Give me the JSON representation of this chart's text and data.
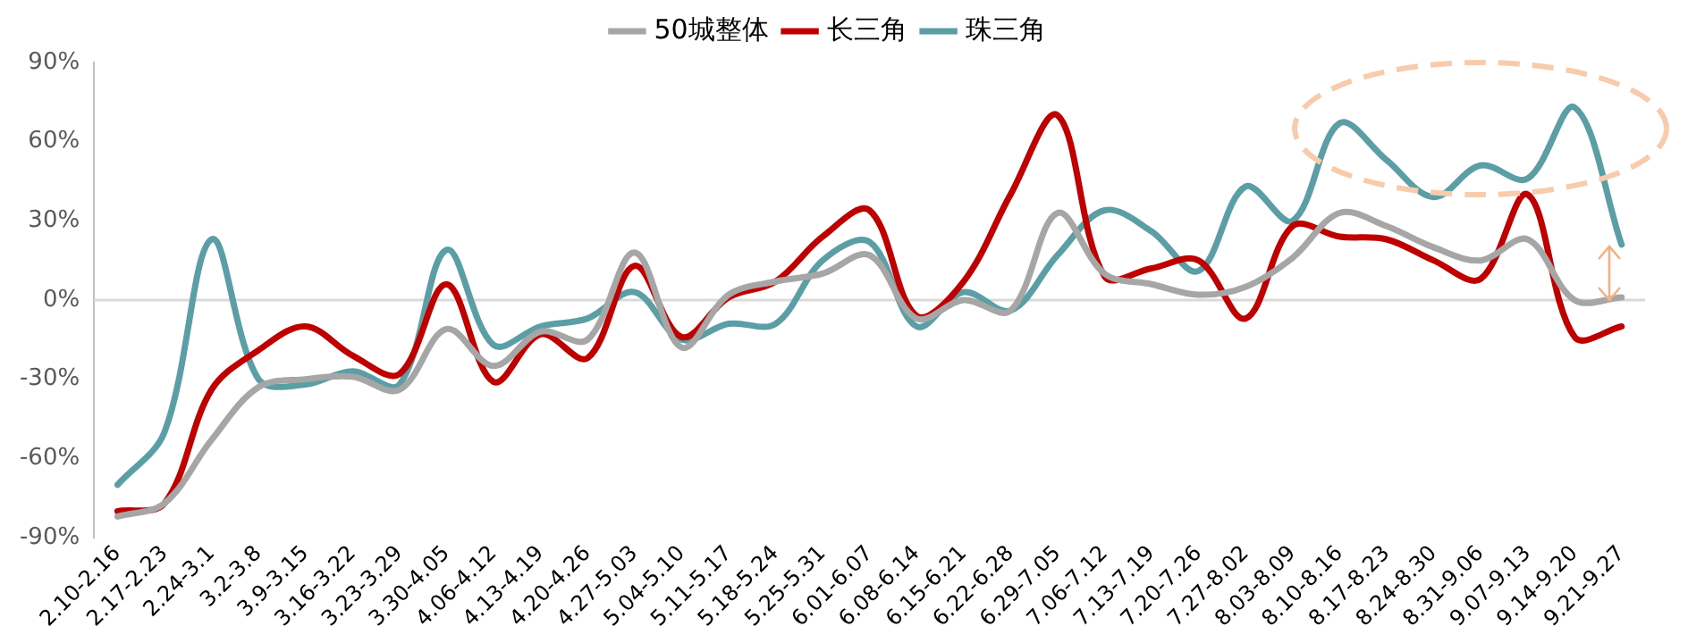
{
  "chart_data": {
    "type": "line",
    "categories": [
      "2.10-2.16",
      "2.17-2.23",
      "2.24-3.1",
      "3.2-3.8",
      "3.9-3.15",
      "3.16-3.22",
      "3.23-3.29",
      "3.30-4.05",
      "4.06-4.12",
      "4.13-4.19",
      "4.20-4.26",
      "4.27-5.03",
      "5.04-5.10",
      "5.11-5.17",
      "5.18-5.24",
      "5.25-5.31",
      "6.01-6.07",
      "6.08-6.14",
      "6.15-6.21",
      "6.22-6.28",
      "6.29-7.05",
      "7.06-7.12",
      "7.13-7.19",
      "7.20-7.26",
      "7.27-8.02",
      "8.03-8.09",
      "8.10-8.16",
      "8.17-8.23",
      "8.24-8.30",
      "8.31-9.06",
      "9.07-9.13",
      "9.14-9.20",
      "9.21-9.27"
    ],
    "series": [
      {
        "name": "50城整体",
        "color": "#a6a6a6",
        "values": [
          -82,
          -77,
          -53,
          -33,
          -30,
          -29,
          -34,
          -11,
          -25,
          -12,
          -15,
          18,
          -18,
          2,
          7,
          10,
          17,
          -7,
          0,
          -4,
          33,
          10,
          6,
          2,
          5,
          16,
          33,
          28,
          20,
          15,
          23,
          0,
          1
        ]
      },
      {
        "name": "长三角",
        "color": "#c00000",
        "values": [
          -80,
          -77,
          -34,
          -19,
          -10,
          -21,
          -28,
          6,
          -31,
          -13,
          -22,
          13,
          -14,
          1,
          7,
          24,
          34,
          -6,
          7,
          40,
          70,
          9,
          12,
          15,
          -7,
          28,
          24,
          23,
          15,
          8,
          40,
          -14,
          -10
        ]
      },
      {
        "name": "珠三角",
        "color": "#5b9ea6",
        "values": [
          -70,
          -50,
          23,
          -30,
          -32,
          -27,
          -32,
          19,
          -17,
          -10,
          -7,
          3,
          -15,
          -9,
          -9,
          15,
          22,
          -10,
          3,
          -4,
          17,
          34,
          26,
          11,
          43,
          30,
          67,
          53,
          39,
          51,
          46,
          73,
          21
        ]
      }
    ],
    "ylim": [
      -90,
      90
    ],
    "yticks": [
      {
        "value": -90,
        "label": "-90%"
      },
      {
        "value": -60,
        "label": "-60%"
      },
      {
        "value": -30,
        "label": "-30%"
      },
      {
        "value": 0,
        "label": "0%"
      },
      {
        "value": 30,
        "label": "30%"
      },
      {
        "value": 60,
        "label": "60%"
      },
      {
        "value": 90,
        "label": "90%"
      }
    ],
    "ref_lines": [
      {
        "axis": "y",
        "value": 0,
        "color": "#d9d9d9"
      }
    ],
    "grid": false,
    "legend": "top",
    "marker": "none",
    "line_style": "solid"
  }
}
